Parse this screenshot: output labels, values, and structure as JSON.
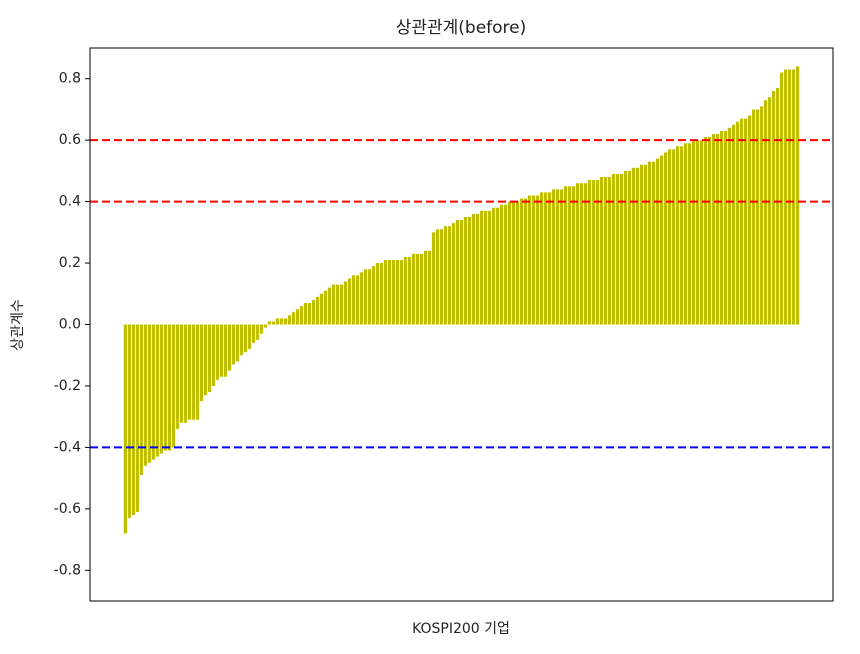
{
  "chart_data": {
    "type": "bar",
    "title": "상관관계(before)",
    "x_label": "KOSPI200 기업",
    "y_label": "상관계수",
    "color": "#bfbf00",
    "ylim": [
      -0.9,
      0.9
    ],
    "yticks": [
      -0.8,
      -0.6,
      -0.4,
      -0.2,
      {
        "value": 0,
        "label": "0.0"
      },
      0.2,
      0.4,
      0.6,
      0.8
    ],
    "hlines": [
      {
        "value": 0.6,
        "color": "#ff0000"
      },
      {
        "value": 0.4,
        "color": "#ff0000"
      },
      {
        "value": -0.4,
        "color": "#0000ff"
      }
    ],
    "values": [
      -0.68,
      -0.63,
      -0.62,
      -0.61,
      -0.49,
      -0.46,
      -0.45,
      -0.44,
      -0.43,
      -0.42,
      -0.41,
      -0.41,
      -0.4,
      -0.34,
      -0.32,
      -0.32,
      -0.31,
      -0.31,
      -0.31,
      -0.25,
      -0.23,
      -0.22,
      -0.2,
      -0.18,
      -0.17,
      -0.17,
      -0.15,
      -0.13,
      -0.12,
      -0.1,
      -0.09,
      -0.08,
      -0.06,
      -0.05,
      -0.03,
      -0.01,
      0.01,
      0.01,
      0.02,
      0.02,
      0.02,
      0.03,
      0.04,
      0.05,
      0.06,
      0.07,
      0.07,
      0.08,
      0.09,
      0.1,
      0.11,
      0.12,
      0.13,
      0.13,
      0.13,
      0.14,
      0.15,
      0.16,
      0.16,
      0.17,
      0.18,
      0.18,
      0.19,
      0.2,
      0.2,
      0.21,
      0.21,
      0.21,
      0.21,
      0.21,
      0.22,
      0.22,
      0.23,
      0.23,
      0.23,
      0.24,
      0.24,
      0.3,
      0.31,
      0.31,
      0.32,
      0.32,
      0.33,
      0.34,
      0.34,
      0.35,
      0.35,
      0.36,
      0.36,
      0.37,
      0.37,
      0.37,
      0.38,
      0.38,
      0.39,
      0.39,
      0.4,
      0.4,
      0.4,
      0.41,
      0.41,
      0.42,
      0.42,
      0.42,
      0.43,
      0.43,
      0.43,
      0.44,
      0.44,
      0.44,
      0.45,
      0.45,
      0.45,
      0.46,
      0.46,
      0.46,
      0.47,
      0.47,
      0.47,
      0.48,
      0.48,
      0.48,
      0.49,
      0.49,
      0.49,
      0.5,
      0.5,
      0.51,
      0.51,
      0.52,
      0.52,
      0.53,
      0.53,
      0.54,
      0.55,
      0.56,
      0.57,
      0.57,
      0.58,
      0.58,
      0.59,
      0.59,
      0.6,
      0.6,
      0.6,
      0.61,
      0.61,
      0.62,
      0.62,
      0.63,
      0.63,
      0.64,
      0.65,
      0.66,
      0.67,
      0.67,
      0.68,
      0.7,
      0.7,
      0.71,
      0.73,
      0.74,
      0.76,
      0.77,
      0.82,
      0.83,
      0.83,
      0.83,
      0.84
    ]
  }
}
